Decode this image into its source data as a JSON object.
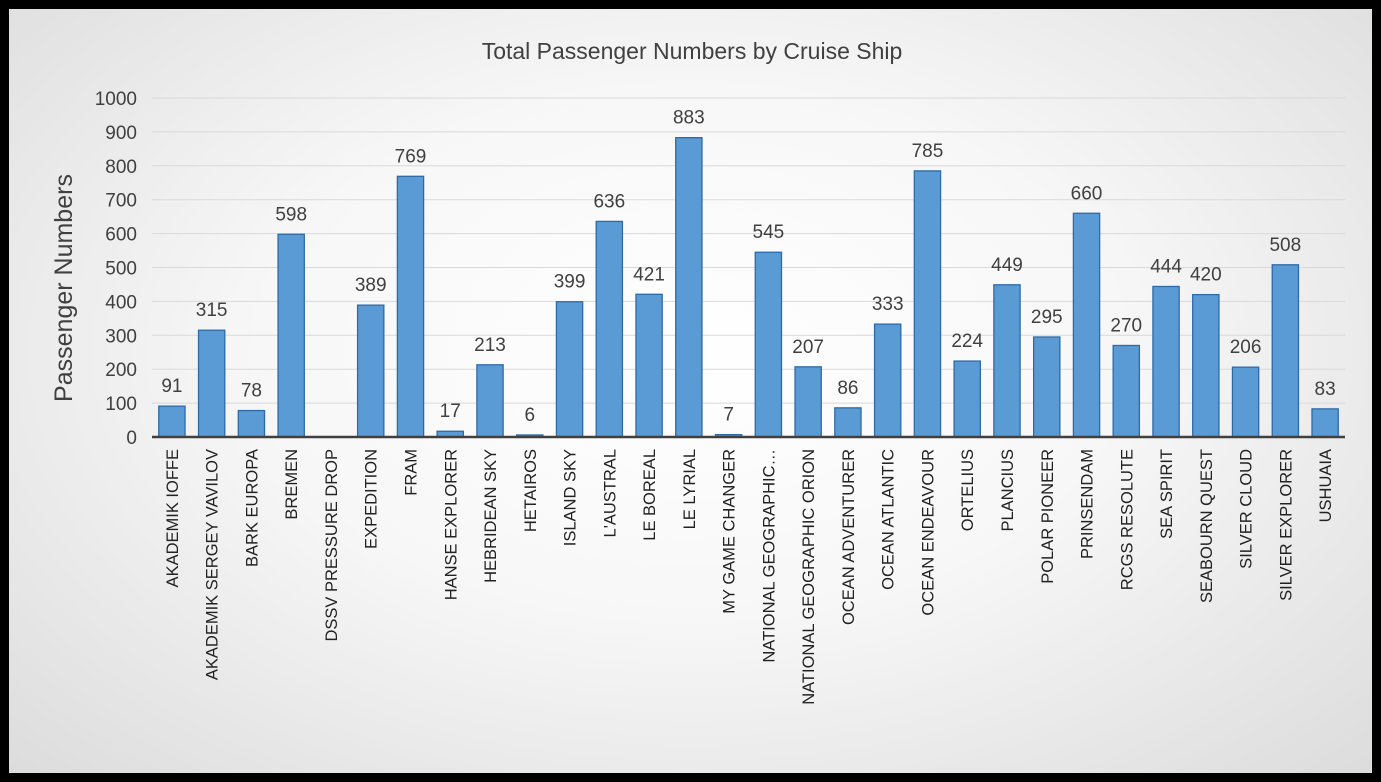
{
  "chart_data": {
    "type": "bar",
    "title": "Total Passenger Numbers by Cruise Ship",
    "xlabel": "",
    "ylabel": "Passenger Numbers",
    "ylim": [
      0,
      1000
    ],
    "yticks": [
      0,
      100,
      200,
      300,
      400,
      500,
      600,
      700,
      800,
      900,
      1000
    ],
    "grid": true,
    "legend": "none",
    "bar_color": "#5b9bd5",
    "bar_edge_color": "#2e6aa8",
    "categories": [
      "AKADEMIK IOFFE",
      "AKADEMIK SERGEY VAVILOV",
      "BARK EUROPA",
      "BREMEN",
      "DSSV PRESSURE DROP",
      "EXPEDITION",
      "FRAM",
      "HANSE EXPLORER",
      "HEBRIDEAN SKY",
      "HETAIROS",
      "ISLAND SKY",
      "L'AUSTRAL",
      "LE BOREAL",
      "LE LYRIAL",
      "MY GAME CHANGER",
      "NATIONAL GEOGRAPHIC…",
      "NATIONAL GEOGRAPHIC ORION",
      "OCEAN ADVENTURER",
      "OCEAN ATLANTIC",
      "OCEAN ENDEAVOUR",
      "ORTELIUS",
      "PLANCIUS",
      "POLAR PIONEER",
      "PRINSENDAM",
      "RCGS RESOLUTE",
      "SEA SPIRIT",
      "SEABOURN QUEST",
      "SILVER CLOUD",
      "SILVER EXPLORER",
      "USHUAIA"
    ],
    "values": [
      91,
      315,
      78,
      598,
      null,
      389,
      769,
      17,
      213,
      6,
      399,
      636,
      421,
      883,
      7,
      545,
      207,
      86,
      333,
      785,
      224,
      449,
      295,
      660,
      270,
      444,
      420,
      206,
      508,
      83
    ]
  }
}
